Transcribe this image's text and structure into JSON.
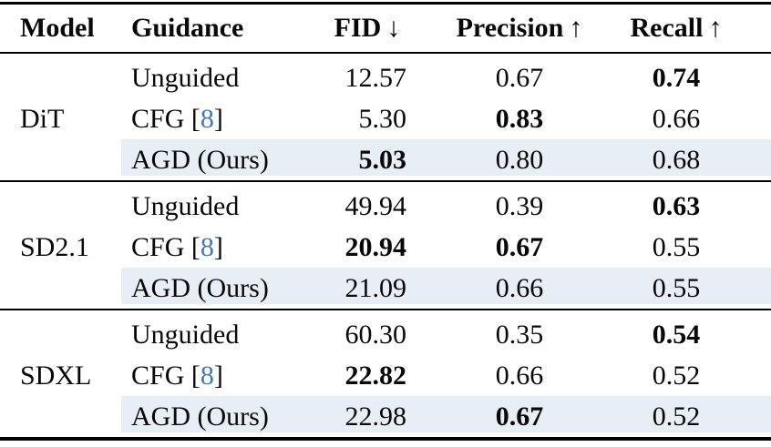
{
  "colors": {
    "highlight": "#e8eef5",
    "cite_blue": "#4878b0",
    "rule": "#000000",
    "text": "#080808"
  },
  "table": {
    "headers": {
      "model": {
        "label": "Model",
        "arrow": ""
      },
      "guidance": {
        "label": "Guidance",
        "arrow": ""
      },
      "fid": {
        "label": "FID",
        "arrow": "↓"
      },
      "precision": {
        "label": "Precision",
        "arrow": "↑"
      },
      "recall": {
        "label": "Recall",
        "arrow": "↑"
      }
    },
    "groups": [
      {
        "model": "DiT",
        "rows": [
          {
            "guidance": "Unguided",
            "cite": "",
            "fid": "12.57",
            "precision": "0.67",
            "recall": "0.74",
            "bold": [
              "recall"
            ],
            "highlight": false
          },
          {
            "guidance": "CFG",
            "cite": "8",
            "fid": "5.30",
            "precision": "0.83",
            "recall": "0.66",
            "bold": [
              "precision"
            ],
            "highlight": false
          },
          {
            "guidance": "AGD (Ours)",
            "cite": "",
            "fid": "5.03",
            "precision": "0.80",
            "recall": "0.68",
            "bold": [
              "fid"
            ],
            "highlight": true
          }
        ]
      },
      {
        "model": "SD2.1",
        "rows": [
          {
            "guidance": "Unguided",
            "cite": "",
            "fid": "49.94",
            "precision": "0.39",
            "recall": "0.63",
            "bold": [
              "recall"
            ],
            "highlight": false
          },
          {
            "guidance": "CFG",
            "cite": "8",
            "fid": "20.94",
            "precision": "0.67",
            "recall": "0.55",
            "bold": [
              "fid",
              "precision"
            ],
            "highlight": false
          },
          {
            "guidance": "AGD (Ours)",
            "cite": "",
            "fid": "21.09",
            "precision": "0.66",
            "recall": "0.55",
            "bold": [],
            "highlight": true
          }
        ]
      },
      {
        "model": "SDXL",
        "rows": [
          {
            "guidance": "Unguided",
            "cite": "",
            "fid": "60.30",
            "precision": "0.35",
            "recall": "0.54",
            "bold": [
              "recall"
            ],
            "highlight": false
          },
          {
            "guidance": "CFG",
            "cite": "8",
            "fid": "22.82",
            "precision": "0.66",
            "recall": "0.52",
            "bold": [
              "fid"
            ],
            "highlight": false
          },
          {
            "guidance": "AGD (Ours)",
            "cite": "",
            "fid": "22.98",
            "precision": "0.67",
            "recall": "0.52",
            "bold": [
              "precision"
            ],
            "highlight": true
          }
        ]
      }
    ]
  },
  "chart_data": {
    "type": "table",
    "columns": [
      "Model",
      "Guidance",
      "FID",
      "Precision",
      "Recall"
    ],
    "rows": [
      [
        "DiT",
        "Unguided",
        12.57,
        0.67,
        0.74
      ],
      [
        "DiT",
        "CFG [8]",
        5.3,
        0.83,
        0.66
      ],
      [
        "DiT",
        "AGD (Ours)",
        5.03,
        0.8,
        0.68
      ],
      [
        "SD2.1",
        "Unguided",
        49.94,
        0.39,
        0.63
      ],
      [
        "SD2.1",
        "CFG [8]",
        20.94,
        0.67,
        0.55
      ],
      [
        "SD2.1",
        "AGD (Ours)",
        21.09,
        0.66,
        0.55
      ],
      [
        "SDXL",
        "Unguided",
        60.3,
        0.35,
        0.54
      ],
      [
        "SDXL",
        "CFG [8]",
        22.82,
        0.66,
        0.52
      ],
      [
        "SDXL",
        "AGD (Ours)",
        22.98,
        0.67,
        0.52
      ]
    ]
  }
}
